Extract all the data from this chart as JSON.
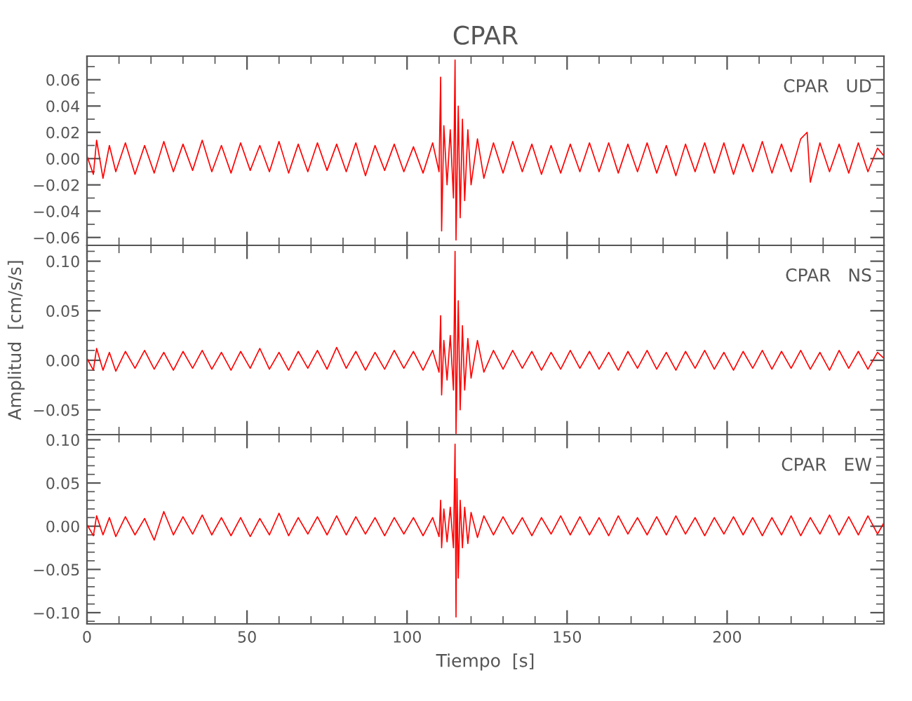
{
  "chart_data": [
    {
      "type": "line",
      "title": "CPAR",
      "annotations": [
        "CPAR   UD"
      ],
      "tick_labels": "y",
      "grid": false,
      "legend": false,
      "xlim": [
        0,
        249
      ],
      "xticks": [
        0,
        50,
        100,
        150,
        200
      ],
      "ylim": [
        -0.066,
        0.078
      ],
      "yticks": [
        {
          "value": -0.06,
          "label": "−0.06"
        },
        {
          "value": -0.04,
          "label": "−0.04"
        },
        {
          "value": -0.02,
          "label": "−0.02"
        },
        {
          "value": 0.0,
          "label": "0.00"
        },
        {
          "value": 0.02,
          "label": "0.02"
        },
        {
          "value": 0.04,
          "label": "0.04"
        },
        {
          "value": 0.06,
          "label": "0.06"
        }
      ],
      "series": [
        {
          "color": "#ff0000",
          "x": [
            0,
            2,
            3,
            5,
            7,
            9,
            12,
            15,
            18,
            21,
            24,
            27,
            30,
            33,
            36,
            39,
            42,
            45,
            48,
            51,
            54,
            57,
            60,
            63,
            66,
            69,
            72,
            75,
            78,
            81,
            84,
            87,
            90,
            93,
            96,
            99,
            102,
            105,
            108,
            110,
            110.5,
            110.8,
            111.5,
            112.5,
            113.5,
            114.5,
            115,
            115.3,
            116,
            116.6,
            117.3,
            118,
            119,
            120,
            122,
            124,
            127,
            130,
            133,
            136,
            139,
            142,
            145,
            148,
            151,
            154,
            157,
            160,
            163,
            166,
            169,
            172,
            175,
            178,
            181,
            184,
            187,
            190,
            193,
            196,
            199,
            202,
            205,
            208,
            211,
            214,
            217,
            220,
            223,
            225,
            226,
            229,
            232,
            235,
            238,
            241,
            244,
            247,
            249
          ],
          "values": [
            0.002,
            -0.012,
            0.014,
            -0.015,
            0.01,
            -0.01,
            0.012,
            -0.012,
            0.01,
            -0.011,
            0.013,
            -0.01,
            0.011,
            -0.009,
            0.014,
            -0.01,
            0.01,
            -0.011,
            0.012,
            -0.009,
            0.01,
            -0.01,
            0.013,
            -0.011,
            0.011,
            -0.01,
            0.012,
            -0.009,
            0.011,
            -0.01,
            0.012,
            -0.013,
            0.01,
            -0.009,
            0.011,
            -0.01,
            0.009,
            -0.011,
            0.012,
            -0.01,
            0.062,
            -0.055,
            0.025,
            -0.02,
            0.022,
            -0.03,
            0.075,
            -0.062,
            0.04,
            -0.045,
            0.03,
            -0.032,
            0.022,
            -0.02,
            0.015,
            -0.015,
            0.012,
            -0.011,
            0.013,
            -0.01,
            0.011,
            -0.012,
            0.01,
            -0.011,
            0.011,
            -0.01,
            0.012,
            -0.01,
            0.012,
            -0.011,
            0.011,
            -0.01,
            0.012,
            -0.011,
            0.01,
            -0.013,
            0.011,
            -0.01,
            0.012,
            -0.011,
            0.012,
            -0.012,
            0.011,
            -0.01,
            0.013,
            -0.011,
            0.011,
            -0.01,
            0.015,
            0.02,
            -0.018,
            0.012,
            -0.01,
            0.011,
            -0.011,
            0.012,
            -0.01,
            0.008,
            0.002
          ]
        }
      ]
    },
    {
      "type": "line",
      "ylabel": "Amplitud  [cm/s/s]",
      "annotations": [
        "CPAR   NS"
      ],
      "tick_labels": "y",
      "grid": false,
      "legend": false,
      "xlim": [
        0,
        249
      ],
      "xticks": [
        0,
        50,
        100,
        150,
        200
      ],
      "ylim": [
        -0.075,
        0.116
      ],
      "yticks": [
        {
          "value": -0.05,
          "label": "−0.05"
        },
        {
          "value": 0.0,
          "label": "0.00"
        },
        {
          "value": 0.05,
          "label": "0.05"
        },
        {
          "value": 0.1,
          "label": "0.10"
        }
      ],
      "series": [
        {
          "color": "#ff0000",
          "x": [
            0,
            2,
            3,
            5,
            7,
            9,
            12,
            15,
            18,
            21,
            24,
            27,
            30,
            33,
            36,
            39,
            42,
            45,
            48,
            51,
            54,
            57,
            60,
            63,
            66,
            69,
            72,
            75,
            78,
            81,
            84,
            87,
            90,
            93,
            96,
            99,
            102,
            105,
            108,
            110,
            110.5,
            110.8,
            111.5,
            112.5,
            113.5,
            114.5,
            115,
            115.3,
            116,
            116.6,
            117.3,
            118,
            119,
            120,
            122,
            124,
            127,
            130,
            133,
            136,
            139,
            142,
            145,
            148,
            151,
            154,
            157,
            160,
            163,
            166,
            169,
            172,
            175,
            178,
            181,
            184,
            187,
            190,
            193,
            196,
            199,
            202,
            205,
            208,
            211,
            214,
            217,
            220,
            223,
            226,
            229,
            232,
            235,
            238,
            241,
            244,
            247,
            249
          ],
          "values": [
            0.002,
            -0.01,
            0.012,
            -0.01,
            0.008,
            -0.011,
            0.009,
            -0.008,
            0.01,
            -0.009,
            0.008,
            -0.01,
            0.009,
            -0.008,
            0.01,
            -0.009,
            0.008,
            -0.01,
            0.009,
            -0.008,
            0.012,
            -0.009,
            0.008,
            -0.01,
            0.009,
            -0.008,
            0.01,
            -0.009,
            0.013,
            -0.008,
            0.009,
            -0.01,
            0.008,
            -0.009,
            0.01,
            -0.008,
            0.009,
            -0.01,
            0.01,
            -0.012,
            0.045,
            -0.035,
            0.02,
            -0.02,
            0.025,
            -0.03,
            0.11,
            -0.074,
            0.06,
            -0.05,
            0.035,
            -0.03,
            0.022,
            -0.018,
            0.02,
            -0.012,
            0.01,
            -0.009,
            0.01,
            -0.008,
            0.009,
            -0.01,
            0.008,
            -0.009,
            0.01,
            -0.008,
            0.009,
            -0.009,
            0.008,
            -0.01,
            0.009,
            -0.008,
            0.01,
            -0.009,
            0.008,
            -0.01,
            0.009,
            -0.008,
            0.01,
            -0.009,
            0.008,
            -0.01,
            0.009,
            -0.008,
            0.01,
            -0.009,
            0.009,
            -0.008,
            0.01,
            -0.009,
            0.008,
            -0.01,
            0.01,
            -0.008,
            0.009,
            -0.009,
            0.008,
            0.002
          ]
        }
      ]
    },
    {
      "type": "line",
      "xlabel": "Tiempo  [s]",
      "annotations": [
        "CPAR   EW"
      ],
      "grid": false,
      "legend": false,
      "xlim": [
        0,
        249
      ],
      "xticks": [
        0,
        50,
        100,
        150,
        200
      ],
      "ylim": [
        -0.113,
        0.106
      ],
      "yticks": [
        {
          "value": -0.1,
          "label": "−0.10"
        },
        {
          "value": -0.05,
          "label": "−0.05"
        },
        {
          "value": 0.0,
          "label": "0.00"
        },
        {
          "value": 0.05,
          "label": "0.05"
        },
        {
          "value": 0.1,
          "label": "0.10"
        }
      ],
      "series": [
        {
          "color": "#ff0000",
          "x": [
            0,
            2,
            3,
            5,
            7,
            9,
            12,
            15,
            18,
            21,
            24,
            27,
            30,
            33,
            36,
            39,
            42,
            45,
            48,
            51,
            54,
            57,
            60,
            63,
            66,
            69,
            72,
            75,
            78,
            81,
            84,
            87,
            90,
            93,
            96,
            99,
            102,
            105,
            108,
            110,
            110.5,
            110.8,
            111.5,
            112.5,
            113.5,
            114.5,
            115,
            115.3,
            115.6,
            116,
            116.6,
            117.3,
            118,
            119,
            120,
            122,
            124,
            127,
            130,
            133,
            136,
            139,
            142,
            145,
            148,
            151,
            154,
            157,
            160,
            163,
            166,
            169,
            172,
            175,
            178,
            181,
            184,
            187,
            190,
            193,
            196,
            199,
            202,
            205,
            208,
            211,
            214,
            217,
            220,
            223,
            226,
            229,
            232,
            235,
            238,
            241,
            244,
            247,
            249
          ],
          "values": [
            0.002,
            -0.011,
            0.012,
            -0.01,
            0.01,
            -0.012,
            0.011,
            -0.01,
            0.009,
            -0.016,
            0.017,
            -0.01,
            0.011,
            -0.009,
            0.013,
            -0.01,
            0.01,
            -0.011,
            0.01,
            -0.012,
            0.009,
            -0.01,
            0.015,
            -0.011,
            0.01,
            -0.009,
            0.011,
            -0.01,
            0.012,
            -0.01,
            0.011,
            -0.009,
            0.01,
            -0.011,
            0.01,
            -0.009,
            0.01,
            -0.011,
            0.01,
            -0.012,
            0.03,
            -0.025,
            0.02,
            -0.018,
            0.022,
            -0.025,
            0.095,
            -0.105,
            0.055,
            -0.06,
            0.03,
            -0.025,
            0.022,
            -0.02,
            0.016,
            -0.013,
            0.012,
            -0.01,
            0.011,
            -0.009,
            0.01,
            -0.011,
            0.01,
            -0.009,
            0.012,
            -0.01,
            0.011,
            -0.01,
            0.01,
            -0.011,
            0.012,
            -0.009,
            0.01,
            -0.01,
            0.011,
            -0.01,
            0.012,
            -0.009,
            0.01,
            -0.011,
            0.01,
            -0.009,
            0.011,
            -0.01,
            0.01,
            -0.011,
            0.01,
            -0.01,
            0.012,
            -0.011,
            0.01,
            -0.009,
            0.013,
            -0.01,
            0.011,
            -0.01,
            0.012,
            -0.009,
            0.004
          ]
        }
      ]
    }
  ]
}
